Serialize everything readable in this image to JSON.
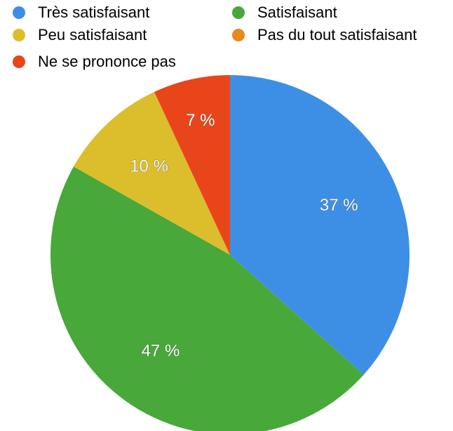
{
  "chart_data": {
    "type": "pie",
    "categories": [
      "Très satisfaisant",
      "Satisfaisant",
      "Peu satisfaisant",
      "Pas du tout satisfaisant",
      "Ne se prononce pas"
    ],
    "values": [
      37,
      47,
      10,
      0,
      7
    ],
    "value_labels": [
      "37 %",
      "47 %",
      "10 %",
      null,
      "7 %"
    ],
    "colors": [
      "#3d8fe6",
      "#48a83a",
      "#dcbd2c",
      "#e8891c",
      "#e8461a"
    ]
  }
}
